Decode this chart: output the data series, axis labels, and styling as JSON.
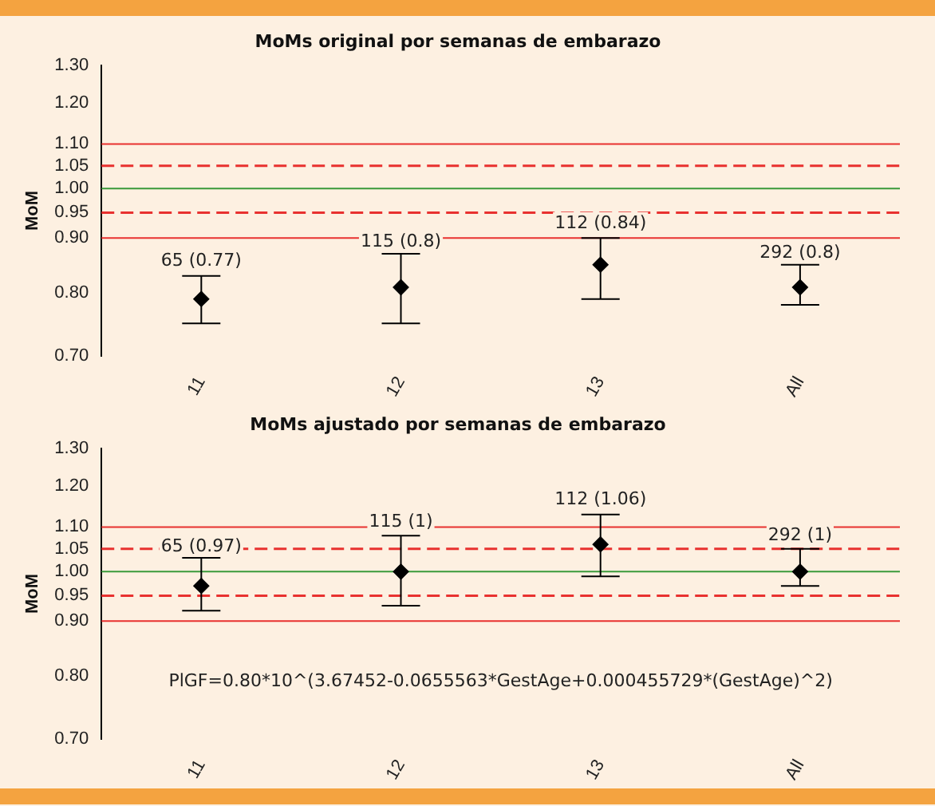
{
  "chart_data": [
    {
      "type": "scatter",
      "title": "MoMs original por semanas de embarazo",
      "ylabel": "MoM",
      "categories": [
        "11",
        "12",
        "13",
        "All"
      ],
      "series": [
        {
          "color": "#000000",
          "values": [
            0.79,
            0.81,
            0.85,
            0.81
          ],
          "errors": [
            [
              0.75,
              0.83
            ],
            [
              0.75,
              0.87
            ],
            [
              0.79,
              0.9
            ],
            [
              0.78,
              0.85
            ]
          ]
        }
      ],
      "marker": "diamond",
      "log": "y",
      "ylim": [
        0.7,
        1.3
      ],
      "yticks": [
        {
          "value": 0.7,
          "label": "0.70"
        },
        {
          "value": 0.8,
          "label": "0.80"
        },
        {
          "value": 0.9,
          "label": "0.90"
        },
        {
          "value": 0.95,
          "label": "0.95"
        },
        {
          "value": 1,
          "label": "1.00"
        },
        {
          "value": 1.05,
          "label": "1.05"
        },
        {
          "value": 1.1,
          "label": "1.10"
        },
        {
          "value": 1.2,
          "label": "1.20"
        },
        {
          "value": 1.3,
          "label": "1.30"
        }
      ],
      "ref_lines": [
        {
          "axis": "y",
          "value": 1.1,
          "color": "#e8312f",
          "line_style": "solid"
        },
        {
          "axis": "y",
          "value": 1.05,
          "color": "#e8312f",
          "line_style": "dashed"
        },
        {
          "axis": "y",
          "value": 1,
          "color": "#3a9a3a",
          "line_style": "solid"
        },
        {
          "axis": "y",
          "value": 0.95,
          "color": "#e8312f",
          "line_style": "dashed"
        },
        {
          "axis": "y",
          "value": 0.9,
          "color": "#e8312f",
          "line_style": "solid"
        }
      ],
      "annotations": [
        {
          "text": "65 (0.77)",
          "x": "11",
          "y": 0.84
        },
        {
          "text": "115 (0.8)",
          "x": "12",
          "y": 0.875
        },
        {
          "text": "112 (0.84)",
          "x": "13",
          "y": 0.91
        },
        {
          "text": "292 (0.8)",
          "x": "All",
          "y": 0.855
        }
      ],
      "grid": false,
      "legend": false
    },
    {
      "type": "scatter",
      "title": "MoMs ajustado por semanas de embarazo",
      "ylabel": "MoM",
      "categories": [
        "11",
        "12",
        "13",
        "All"
      ],
      "series": [
        {
          "color": "#000000",
          "values": [
            0.97,
            1,
            1.06,
            1
          ],
          "errors": [
            [
              0.92,
              1.03
            ],
            [
              0.93,
              1.08
            ],
            [
              0.99,
              1.13
            ],
            [
              0.97,
              1.05
            ]
          ]
        }
      ],
      "marker": "diamond",
      "log": "y",
      "ylim": [
        0.7,
        1.3
      ],
      "yticks": [
        {
          "value": 0.7,
          "label": "0.70"
        },
        {
          "value": 0.8,
          "label": "0.80"
        },
        {
          "value": 0.9,
          "label": "0.90"
        },
        {
          "value": 0.95,
          "label": "0.95"
        },
        {
          "value": 1,
          "label": "1.00"
        },
        {
          "value": 1.05,
          "label": "1.05"
        },
        {
          "value": 1.1,
          "label": "1.10"
        },
        {
          "value": 1.2,
          "label": "1.20"
        },
        {
          "value": 1.3,
          "label": "1.30"
        }
      ],
      "ref_lines": [
        {
          "axis": "y",
          "value": 1.1,
          "color": "#e8312f",
          "line_style": "solid"
        },
        {
          "axis": "y",
          "value": 1.05,
          "color": "#e8312f",
          "line_style": "dashed"
        },
        {
          "axis": "y",
          "value": 1,
          "color": "#3a9a3a",
          "line_style": "solid"
        },
        {
          "axis": "y",
          "value": 0.95,
          "color": "#e8312f",
          "line_style": "dashed"
        },
        {
          "axis": "y",
          "value": 0.9,
          "color": "#e8312f",
          "line_style": "solid"
        }
      ],
      "annotations": [
        {
          "text": "65 (0.97)",
          "x": "11",
          "y": 1.035
        },
        {
          "text": "115 (1)",
          "x": "12",
          "y": 1.09
        },
        {
          "text": "112 (1.06)",
          "x": "13",
          "y": 1.145
        },
        {
          "text": "292 (1)",
          "x": "All",
          "y": 1.06
        },
        "PlGF=0.80*10^(3.67452-0.0655563*GestAge+0.000455729*(GestAge)^2)"
      ],
      "grid": false,
      "legend": false
    }
  ]
}
